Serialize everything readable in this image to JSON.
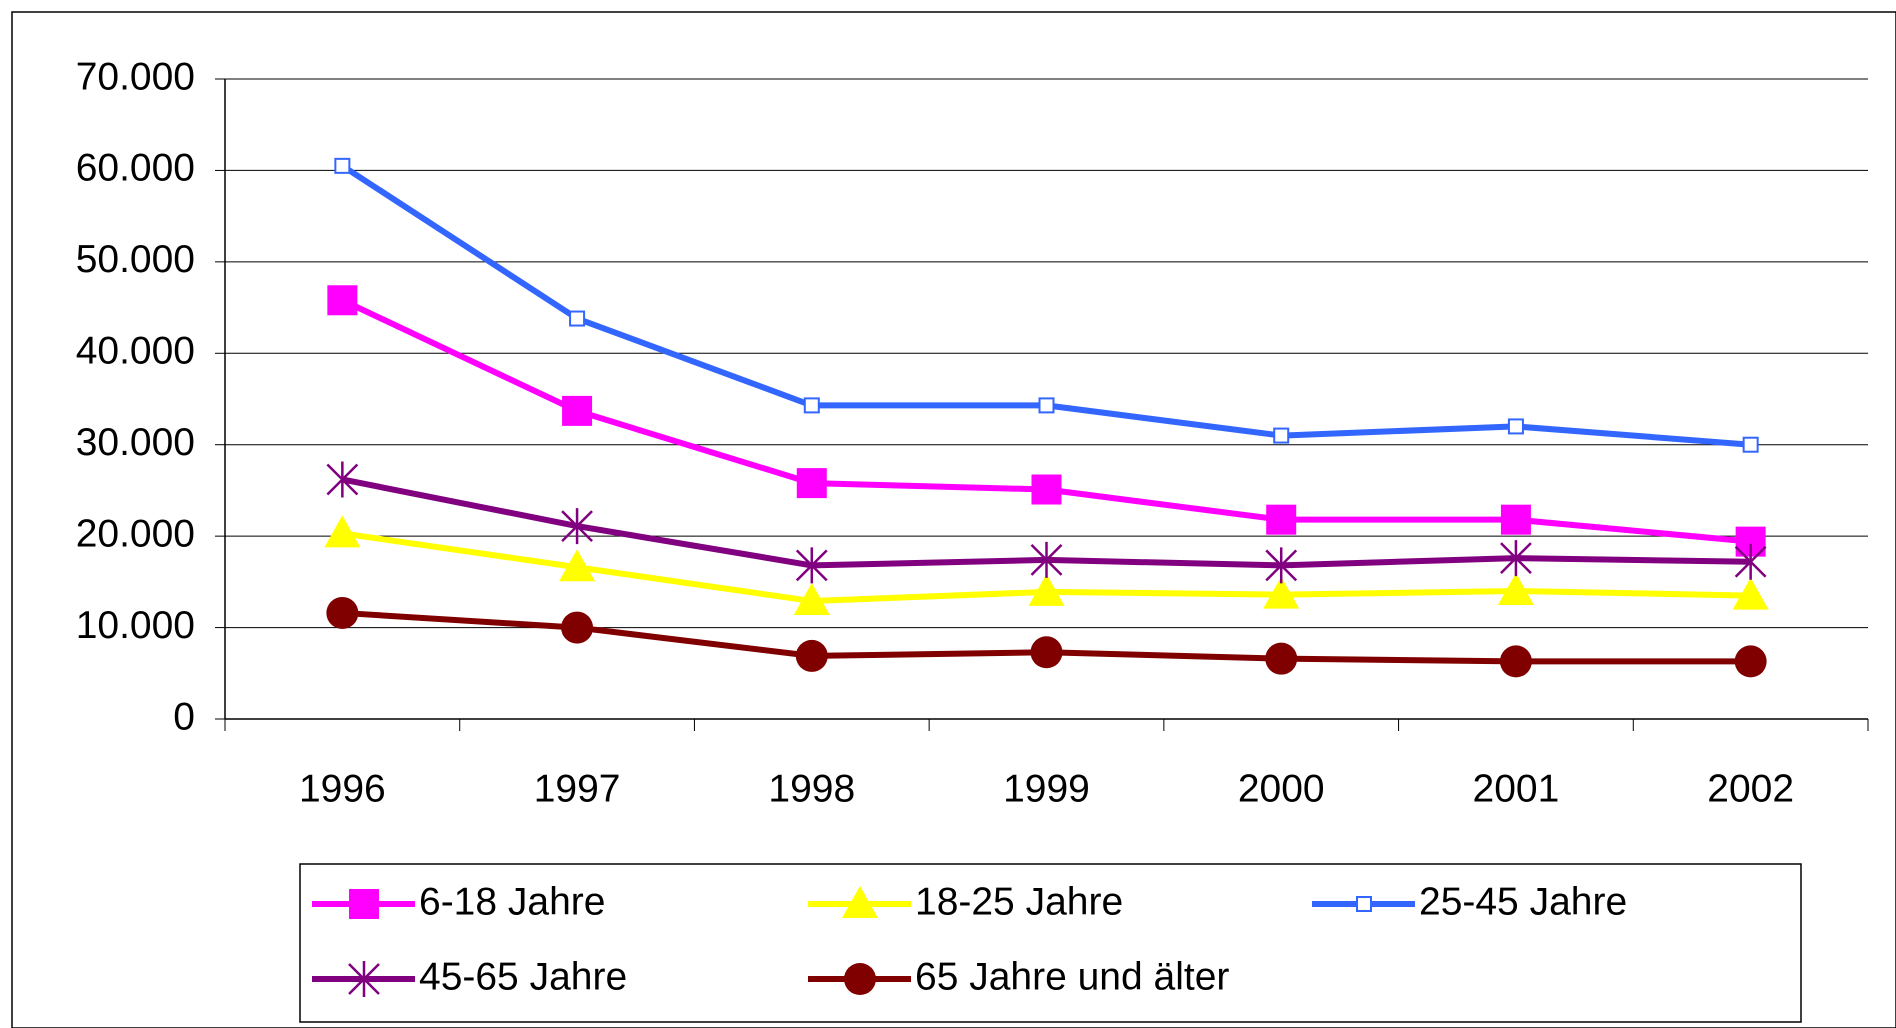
{
  "chart_data": {
    "type": "line",
    "categories": [
      "1996",
      "1997",
      "1998",
      "1999",
      "2000",
      "2001",
      "2002"
    ],
    "series": [
      {
        "name": "6-18 Jahre",
        "color": "#ff00ff",
        "marker": "square",
        "values": [
          45800,
          33700,
          25800,
          25100,
          21800,
          21800,
          19400
        ]
      },
      {
        "name": "18-25 Jahre",
        "color": "#ffff00",
        "marker": "triangle",
        "values": [
          20300,
          16600,
          12900,
          13900,
          13600,
          14000,
          13500
        ]
      },
      {
        "name": "25-45 Jahre",
        "color": "#3366ff",
        "marker": "hollow-square",
        "values": [
          60500,
          43800,
          34300,
          34300,
          31000,
          32000,
          30000
        ]
      },
      {
        "name": "45-65 Jahre",
        "color": "#800080",
        "marker": "asterisk",
        "values": [
          26200,
          21100,
          16800,
          17400,
          16800,
          17600,
          17200
        ]
      },
      {
        "name": "65 Jahre und älter",
        "color": "#800000",
        "marker": "circle",
        "values": [
          11600,
          10000,
          6900,
          7300,
          6600,
          6300,
          6300
        ]
      }
    ],
    "ylim": [
      0,
      70000
    ],
    "yticks": [
      0,
      {
        "value": 10000,
        "label": "10.000"
      },
      {
        "value": 20000,
        "label": "20.000"
      },
      {
        "value": 30000,
        "label": "30.000"
      },
      {
        "value": 40000,
        "label": "40.000"
      },
      {
        "value": 50000,
        "label": "50.000"
      },
      {
        "value": 60000,
        "label": "60.000"
      },
      {
        "value": 70000,
        "label": "70.000"
      }
    ],
    "grid": true
  }
}
